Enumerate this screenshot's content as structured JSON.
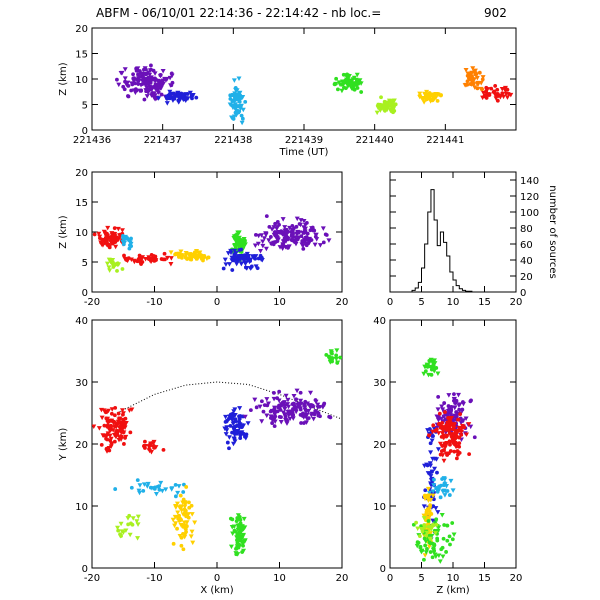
{
  "title": "ABFM - 06/10/01 22:14:36 - 22:14:42 - nb loc.=",
  "count": "902",
  "colors": {
    "purple": "#6a10b8",
    "blue": "#1f1fd8",
    "cyan": "#20b0e8",
    "green": "#30e020",
    "yellowgreen": "#a8f020",
    "yellow": "#ffd000",
    "orange": "#ff8000",
    "red": "#f01010"
  },
  "chart_data": [
    {
      "id": "time-height",
      "type": "scatter",
      "xlabel": "Time (UT)",
      "ylabel": "Z (km)",
      "xlim": [
        221436,
        221442
      ],
      "ylim": [
        0,
        20
      ],
      "xtick_labels": [
        "221436",
        "221437",
        "221438",
        "221439",
        "221440",
        "221441"
      ],
      "yticks": [
        0,
        5,
        10,
        15,
        20
      ],
      "clusters": [
        {
          "color": "purple",
          "x": [
            221436.3,
            221437.3
          ],
          "y": [
            5,
            13.5
          ],
          "n": 160
        },
        {
          "color": "blue",
          "x": [
            221436.9,
            221437.6
          ],
          "y": [
            5,
            8
          ],
          "n": 60
        },
        {
          "color": "cyan",
          "x": [
            221437.9,
            221438.2
          ],
          "y": [
            0,
            11
          ],
          "n": 60
        },
        {
          "color": "green",
          "x": [
            221439.3,
            221439.9
          ],
          "y": [
            7,
            12
          ],
          "n": 60
        },
        {
          "color": "yellowgreen",
          "x": [
            221439.9,
            221440.4
          ],
          "y": [
            2,
            7
          ],
          "n": 45
        },
        {
          "color": "yellow",
          "x": [
            221440.5,
            221441.0
          ],
          "y": [
            5,
            8
          ],
          "n": 40
        },
        {
          "color": "orange",
          "x": [
            221441.2,
            221441.6
          ],
          "y": [
            7,
            13
          ],
          "n": 45
        },
        {
          "color": "red",
          "x": [
            221441.4,
            221442.0
          ],
          "y": [
            5,
            9
          ],
          "n": 40
        }
      ]
    },
    {
      "id": "x-height",
      "type": "scatter",
      "xlabel": "",
      "ylabel": "Z (km)",
      "xlim": [
        -20,
        20
      ],
      "ylim": [
        0,
        20
      ],
      "xticks": [
        -20,
        -10,
        0,
        10,
        20
      ],
      "yticks": [
        0,
        5,
        10,
        15,
        20
      ],
      "clusters": [
        {
          "color": "red",
          "x": [
            -20,
            -14
          ],
          "y": [
            7,
            11
          ],
          "n": 80
        },
        {
          "color": "red",
          "x": [
            -17,
            -5
          ],
          "y": [
            4.5,
            6.5
          ],
          "n": 45
        },
        {
          "color": "cyan",
          "x": [
            -16,
            -13
          ],
          "y": [
            7,
            10
          ],
          "n": 20
        },
        {
          "color": "yellowgreen",
          "x": [
            -19,
            -14
          ],
          "y": [
            3,
            6
          ],
          "n": 20
        },
        {
          "color": "yellow",
          "x": [
            -8,
            0
          ],
          "y": [
            5,
            7
          ],
          "n": 70
        },
        {
          "color": "green",
          "x": [
            2,
            5
          ],
          "y": [
            5,
            11
          ],
          "n": 60
        },
        {
          "color": "blue",
          "x": [
            0,
            8
          ],
          "y": [
            3,
            8
          ],
          "n": 70
        },
        {
          "color": "purple",
          "x": [
            4,
            20
          ],
          "y": [
            6,
            13
          ],
          "n": 150
        }
      ]
    },
    {
      "id": "histogram",
      "type": "bar",
      "xlabel": "",
      "ylabel": "number of sources",
      "xlim": [
        0,
        20
      ],
      "ylim": [
        0,
        150
      ],
      "xticks": [
        0,
        5,
        10,
        15,
        20
      ],
      "yticks": [
        0,
        20,
        40,
        60,
        80,
        100,
        120,
        140
      ],
      "bin_width": 0.5,
      "bin_start": 0,
      "values": [
        0,
        0,
        0,
        0,
        0,
        0,
        0,
        2,
        5,
        12,
        30,
        60,
        100,
        128,
        90,
        58,
        75,
        62,
        45,
        25,
        15,
        8,
        4,
        2,
        1,
        1,
        0,
        0,
        0,
        0,
        0,
        0,
        0,
        0,
        0,
        0,
        0,
        0,
        0,
        0
      ]
    },
    {
      "id": "plan-view",
      "type": "scatter",
      "xlabel": "X (km)",
      "ylabel": "Y (km)",
      "xlim": [
        -20,
        20
      ],
      "ylim": [
        0,
        40
      ],
      "xticks": [
        -20,
        -10,
        0,
        10,
        20
      ],
      "yticks": [
        0,
        10,
        20,
        30,
        40
      ],
      "curve": {
        "x": [
          -16,
          -10,
          -5,
          0,
          5,
          10,
          15,
          20
        ],
        "y": [
          25,
          28,
          29.5,
          30,
          29.6,
          28,
          26,
          24
        ]
      },
      "clusters": [
        {
          "color": "red",
          "x": [
            -20,
            -13
          ],
          "y": [
            18,
            27
          ],
          "n": 120
        },
        {
          "color": "red",
          "x": [
            -13,
            -8
          ],
          "y": [
            18,
            21
          ],
          "n": 20
        },
        {
          "color": "cyan",
          "x": [
            -17,
            -3
          ],
          "y": [
            11,
            15
          ],
          "n": 30
        },
        {
          "color": "yellowgreen",
          "x": [
            -17,
            -11
          ],
          "y": [
            3,
            10
          ],
          "n": 20
        },
        {
          "color": "yellow",
          "x": [
            -8,
            -3
          ],
          "y": [
            1,
            15
          ],
          "n": 70
        },
        {
          "color": "green",
          "x": [
            2,
            5
          ],
          "y": [
            1,
            10
          ],
          "n": 70
        },
        {
          "color": "green",
          "x": [
            17,
            20
          ],
          "y": [
            32,
            36
          ],
          "n": 20
        },
        {
          "color": "blue",
          "x": [
            0,
            6
          ],
          "y": [
            18,
            28
          ],
          "n": 70
        },
        {
          "color": "purple",
          "x": [
            4,
            20
          ],
          "y": [
            22,
            29
          ],
          "n": 150
        }
      ]
    },
    {
      "id": "height-y",
      "type": "scatter",
      "xlabel": "Z (km)",
      "ylabel": "",
      "xlim": [
        0,
        20
      ],
      "ylim": [
        0,
        40
      ],
      "xticks": [
        0,
        5,
        10,
        15,
        20
      ],
      "yticks": [
        0,
        10,
        20,
        30,
        40
      ],
      "clusters": [
        {
          "color": "green",
          "x": [
            5,
            8
          ],
          "y": [
            30,
            35
          ],
          "n": 25
        },
        {
          "color": "blue",
          "x": [
            5,
            8
          ],
          "y": [
            0,
            30
          ],
          "n": 60
        },
        {
          "color": "purple",
          "x": [
            6,
            14
          ],
          "y": [
            20,
            29
          ],
          "n": 100
        },
        {
          "color": "red",
          "x": [
            6,
            13
          ],
          "y": [
            16,
            27
          ],
          "n": 120
        },
        {
          "color": "cyan",
          "x": [
            5,
            11
          ],
          "y": [
            11,
            15
          ],
          "n": 30
        },
        {
          "color": "yellow",
          "x": [
            5,
            7
          ],
          "y": [
            1,
            15
          ],
          "n": 50
        },
        {
          "color": "green",
          "x": [
            3,
            11
          ],
          "y": [
            0,
            10
          ],
          "n": 70
        },
        {
          "color": "yellowgreen",
          "x": [
            3,
            8
          ],
          "y": [
            3,
            10
          ],
          "n": 20
        }
      ]
    }
  ]
}
